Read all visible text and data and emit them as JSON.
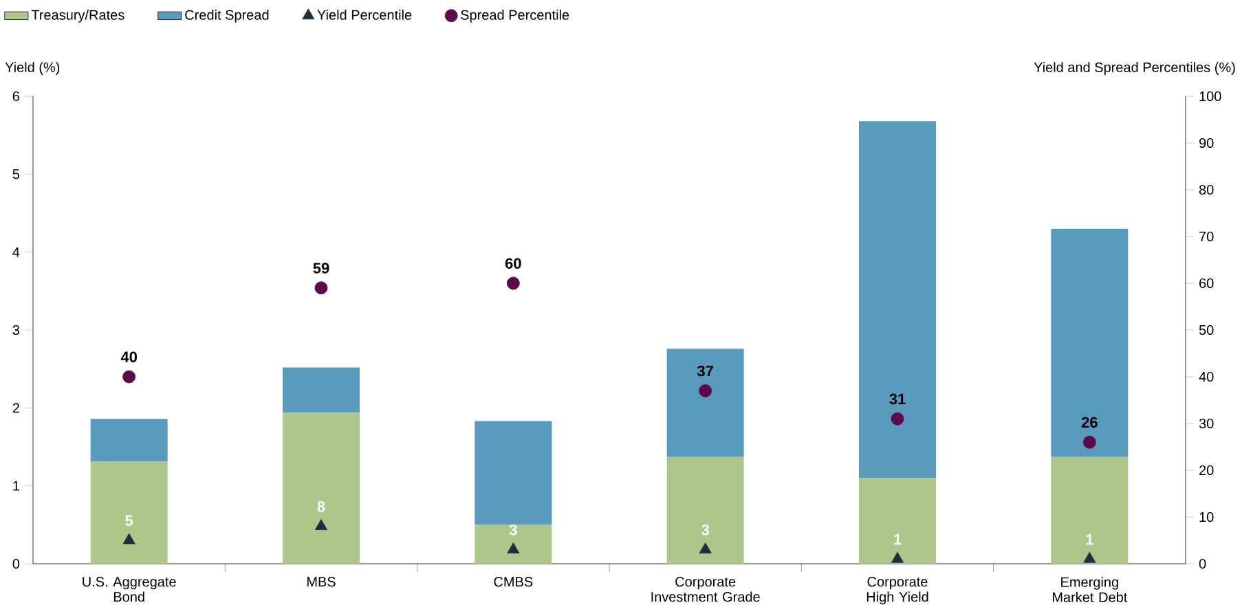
{
  "chart_data": {
    "type": "bar",
    "stacked": true,
    "legend": "top",
    "categories": [
      "U.S. Aggregate Bond",
      "MBS",
      "CMBS",
      "Corporate Investment Grade",
      "Corporate High Yield",
      "Emerging Market Debt"
    ],
    "ylabel": "Yield (%)",
    "y2label": "Yield and Spread Percentiles (%)",
    "ylim": [
      0,
      6
    ],
    "yticks": [
      0,
      1,
      2,
      3,
      4,
      5,
      6
    ],
    "y2lim": [
      0,
      100
    ],
    "y2ticks": [
      0,
      10,
      20,
      30,
      40,
      50,
      60,
      70,
      80,
      90,
      100
    ],
    "series": [
      {
        "name": "Treasury/Rates",
        "color": "#adc78b",
        "values": [
          1.31,
          1.94,
          0.5,
          1.37,
          1.1,
          1.37
        ]
      },
      {
        "name": "Credit Spread",
        "color": "#589bbf",
        "values": [
          0.55,
          0.58,
          1.33,
          1.39,
          4.58,
          2.93
        ]
      },
      {
        "name": "Yield Percentile",
        "type": "scatter",
        "axis": "y2",
        "marker": "triangle",
        "color": "#1c2f3c",
        "values": [
          5,
          8,
          3,
          3,
          1,
          1
        ],
        "value_labels": [
          "5",
          "8",
          "3",
          "3",
          "1",
          "1"
        ]
      },
      {
        "name": "Spread Percentile",
        "type": "scatter",
        "axis": "y2",
        "marker": "circle",
        "color": "#5c0a4a",
        "values": [
          40,
          59,
          60,
          37,
          31,
          26
        ],
        "value_labels": [
          "40",
          "59",
          "60",
          "37",
          "31",
          "26"
        ]
      }
    ]
  }
}
